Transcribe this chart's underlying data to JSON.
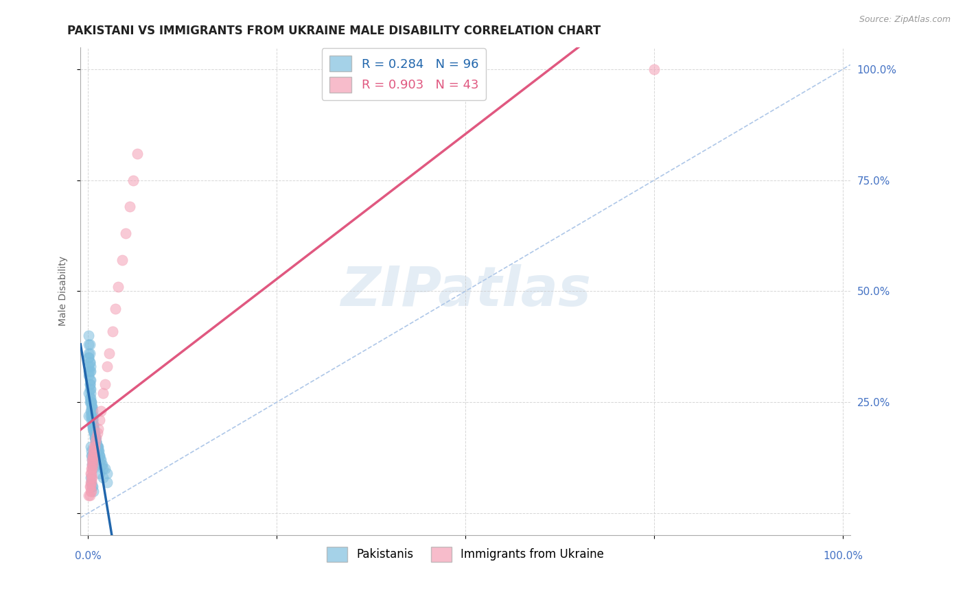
{
  "title": "PAKISTANI VS IMMIGRANTS FROM UKRAINE MALE DISABILITY CORRELATION CHART",
  "source": "Source: ZipAtlas.com",
  "ylabel": "Male Disability",
  "pakistani_R": 0.284,
  "pakistani_N": 96,
  "ukraine_R": 0.903,
  "ukraine_N": 43,
  "pakistani_color": "#7fbfdf",
  "ukraine_color": "#f4a0b5",
  "pakistani_line_color": "#2166ac",
  "ukraine_line_color": "#e05880",
  "diag_line_color": "#aec7e8",
  "watermark": "ZIPatlas",
  "legend_labels": [
    "Pakistanis",
    "Immigrants from Ukraine"
  ],
  "pakistani_scatter_x": [
    0.002,
    0.003,
    0.004,
    0.005,
    0.003,
    0.004,
    0.005,
    0.006,
    0.004,
    0.005,
    0.006,
    0.007,
    0.003,
    0.004,
    0.005,
    0.006,
    0.007,
    0.005,
    0.006,
    0.007,
    0.008,
    0.006,
    0.007,
    0.008,
    0.009,
    0.007,
    0.008,
    0.009,
    0.01,
    0.008,
    0.009,
    0.01,
    0.011,
    0.01,
    0.011,
    0.012,
    0.011,
    0.012,
    0.013,
    0.012,
    0.013,
    0.014,
    0.013,
    0.014,
    0.015,
    0.015,
    0.016,
    0.017,
    0.018,
    0.019,
    0.02,
    0.022,
    0.025,
    0.001,
    0.001,
    0.002,
    0.002,
    0.003,
    0.001,
    0.002,
    0.001,
    0.003,
    0.001,
    0.002,
    0.003,
    0.002,
    0.003,
    0.004,
    0.001,
    0.002,
    0.001,
    0.002,
    0.003,
    0.015,
    0.02,
    0.025,
    0.003,
    0.004,
    0.005,
    0.004,
    0.005,
    0.006,
    0.005,
    0.006,
    0.001,
    0.002,
    0.001,
    0.002,
    0.001,
    0.002,
    0.003,
    0.003,
    0.004,
    0.005,
    0.006,
    0.007
  ],
  "pakistani_scatter_y": [
    0.28,
    0.27,
    0.25,
    0.24,
    0.22,
    0.21,
    0.2,
    0.19,
    0.23,
    0.22,
    0.21,
    0.2,
    0.26,
    0.25,
    0.24,
    0.23,
    0.22,
    0.22,
    0.21,
    0.2,
    0.19,
    0.2,
    0.19,
    0.18,
    0.18,
    0.19,
    0.18,
    0.17,
    0.17,
    0.18,
    0.17,
    0.16,
    0.16,
    0.17,
    0.16,
    0.15,
    0.16,
    0.15,
    0.15,
    0.15,
    0.14,
    0.14,
    0.14,
    0.13,
    0.13,
    0.13,
    0.12,
    0.12,
    0.11,
    0.11,
    0.1,
    0.1,
    0.09,
    0.35,
    0.38,
    0.36,
    0.34,
    0.32,
    0.4,
    0.38,
    0.36,
    0.3,
    0.32,
    0.29,
    0.28,
    0.26,
    0.25,
    0.24,
    0.22,
    0.29,
    0.27,
    0.25,
    0.23,
    0.09,
    0.08,
    0.07,
    0.15,
    0.14,
    0.13,
    0.13,
    0.12,
    0.11,
    0.11,
    0.1,
    0.31,
    0.3,
    0.33,
    0.32,
    0.35,
    0.34,
    0.33,
    0.08,
    0.07,
    0.06,
    0.06,
    0.05
  ],
  "ukraine_scatter_x": [
    0.001,
    0.002,
    0.003,
    0.004,
    0.002,
    0.003,
    0.004,
    0.003,
    0.004,
    0.005,
    0.003,
    0.004,
    0.005,
    0.004,
    0.005,
    0.006,
    0.005,
    0.006,
    0.007,
    0.006,
    0.007,
    0.008,
    0.008,
    0.009,
    0.01,
    0.011,
    0.012,
    0.013,
    0.015,
    0.017,
    0.02,
    0.022,
    0.025,
    0.028,
    0.032,
    0.036,
    0.04,
    0.045,
    0.05,
    0.055,
    0.06,
    0.065,
    0.75
  ],
  "ukraine_scatter_y": [
    0.04,
    0.04,
    0.05,
    0.05,
    0.06,
    0.06,
    0.07,
    0.07,
    0.08,
    0.08,
    0.09,
    0.09,
    0.1,
    0.1,
    0.11,
    0.11,
    0.12,
    0.12,
    0.13,
    0.13,
    0.14,
    0.14,
    0.15,
    0.15,
    0.16,
    0.17,
    0.18,
    0.19,
    0.21,
    0.23,
    0.27,
    0.29,
    0.33,
    0.36,
    0.41,
    0.46,
    0.51,
    0.57,
    0.63,
    0.69,
    0.75,
    0.81,
    1.0
  ],
  "bg_color": "#ffffff",
  "grid_color": "#cccccc",
  "title_fontsize": 12,
  "axis_label_fontsize": 10,
  "tick_fontsize": 11,
  "tick_color": "#4472c4"
}
